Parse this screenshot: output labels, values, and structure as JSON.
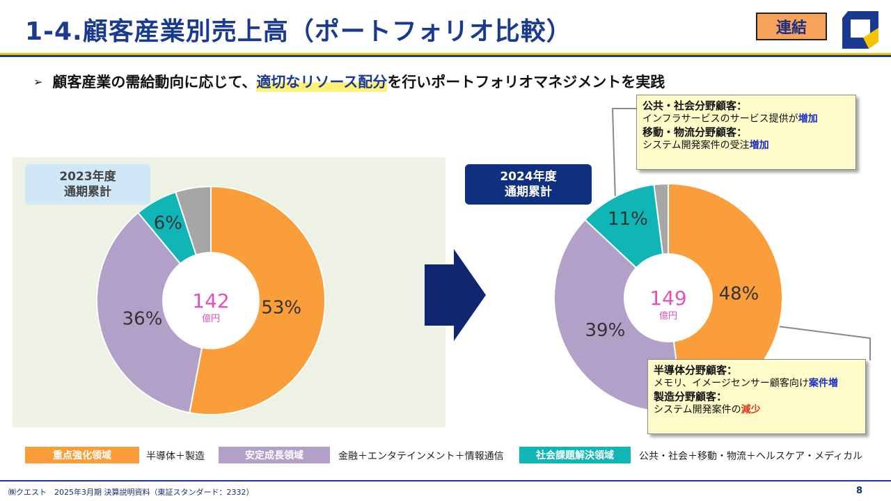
{
  "header": {
    "title": "1-4.顧客産業別売上高（ポートフォリオ比較）",
    "badge": "連結"
  },
  "bullet": {
    "icon": "arrowhead-bullet",
    "prefix": "顧客産業の需給動向に応じて、",
    "highlight": "適切なリソース配分",
    "suffix": "を行いポートフォリオマネジメントを実践"
  },
  "chart_data": [
    {
      "type": "pie",
      "title": "2023年度",
      "subtitle": "通期累計",
      "center_value": "142",
      "center_unit": "億円",
      "slices": [
        {
          "category": "重点強化領域",
          "value": 53,
          "label": "53%",
          "color": "#fa9d3b"
        },
        {
          "category": "安定成長領域",
          "value": 36,
          "label": "36%",
          "color": "#b3a0c8"
        },
        {
          "category": "社会課題解決領域",
          "value": 6,
          "label": "6%",
          "color": "#10b6b6"
        },
        {
          "category": "",
          "value": 5,
          "label": "",
          "color": "#a6a6a6"
        }
      ]
    },
    {
      "type": "pie",
      "title": "2024年度",
      "subtitle": "通期累計",
      "center_value": "149",
      "center_unit": "億円",
      "slices": [
        {
          "category": "重点強化領域",
          "value": 48,
          "label": "48%",
          "color": "#fa9d3b"
        },
        {
          "category": "安定成長領域",
          "value": 39,
          "label": "39%",
          "color": "#b3a0c8"
        },
        {
          "category": "社会課題解決領域",
          "value": 11,
          "label": "11%",
          "color": "#10b6b6"
        },
        {
          "category": "",
          "value": 2,
          "label": "",
          "color": "#a6a6a6"
        }
      ]
    }
  ],
  "callouts": {
    "top": {
      "h1": "公共・社会分野顧客：",
      "l1_text": "インフラサービスのサービス提供が",
      "l1_emph": "増加",
      "h2": "移動・物流分野顧客：",
      "l2_text": "システム開発案件の受注",
      "l2_emph": "増加"
    },
    "bottom": {
      "h1": "半導体分野顧客：",
      "l1_text": "メモリ、イメージセンサー顧客向け",
      "l1_emph": "案件増",
      "h2": "製造分野顧客：",
      "l2_text": "システム開発案件の",
      "l2_emph": "減少"
    }
  },
  "legend": [
    {
      "label": "重点強化領域",
      "desc": "半導体＋製造",
      "color": "#fa9d3b"
    },
    {
      "label": "安定成長領域",
      "desc": "金融＋エンタテインメント＋情報通信",
      "color": "#b3a0c8"
    },
    {
      "label": "社会課題解決領域",
      "desc": "公共・社会＋移動・物流＋ヘルスケア・メディカル",
      "color": "#10b6b6"
    }
  ],
  "footer": {
    "text": "㈱クエスト　2025年3月期 決算説明資料（東証スタンダード：2332）",
    "page": "8"
  },
  "colors": {
    "brand_blue": "#1a3a8f",
    "accent_yellow": "#f5c400",
    "center_text": "#e64fb5"
  }
}
